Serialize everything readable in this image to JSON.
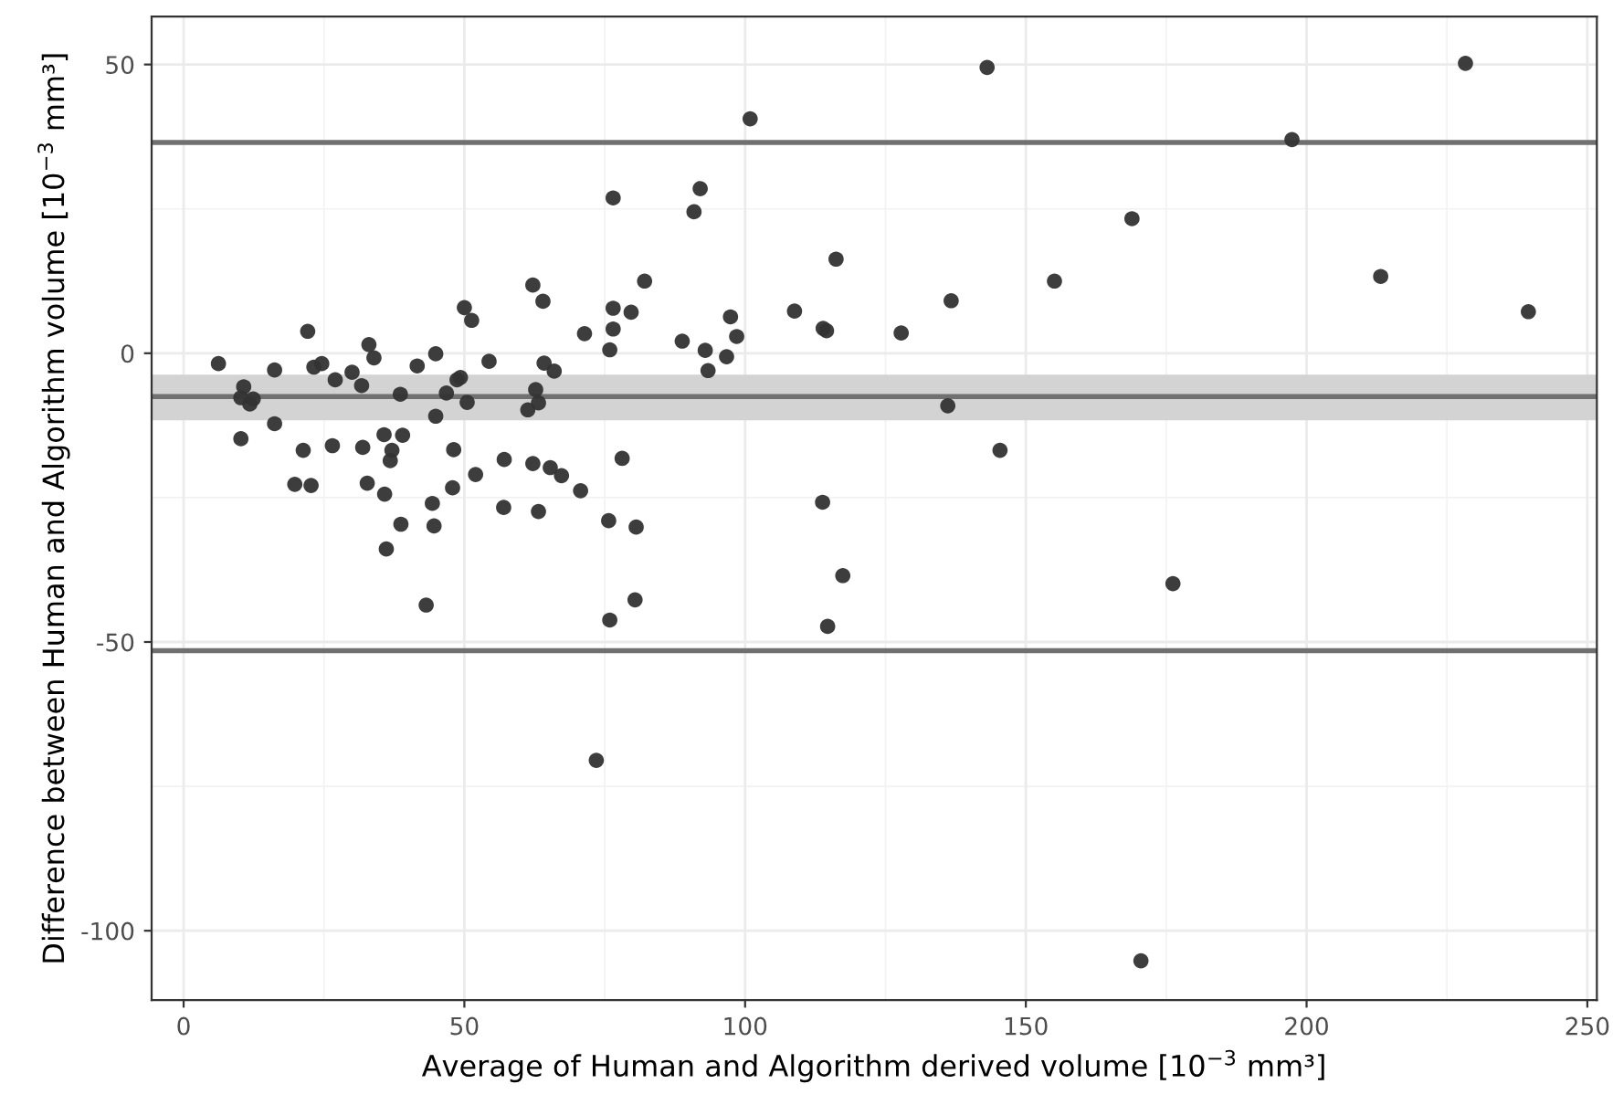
{
  "chart_data": {
    "type": "scatter",
    "xlabel": "Average of Human and Algorithm derived volume [10$^{−3}$ mm³]",
    "ylabel": "Difference between Human and Algorithm volume [10$^{−3}$ mm³]",
    "xlim": [
      -5.7,
      251.7
    ],
    "ylim": [
      -112,
      58.3
    ],
    "xticks": [
      0,
      50,
      100,
      150,
      200,
      250
    ],
    "yticks": [
      -100,
      -50,
      0,
      50
    ],
    "grid": true,
    "marker": "circle",
    "ref_lines": [
      {
        "axis": "y",
        "value": 36.5,
        "color": "#707070"
      },
      {
        "axis": "y",
        "value": -7.5,
        "color": "#707070"
      },
      {
        "axis": "y",
        "value": -51.5,
        "color": "#707070"
      }
    ],
    "bands": [
      {
        "axis": "y",
        "from": -11.6,
        "to": -3.7,
        "color": "#d3d3d3"
      }
    ],
    "series": [
      {
        "color": "#333333",
        "x": [
          6.2,
          10.7,
          10.2,
          11.8,
          12.4,
          10.2,
          16.2,
          16.2,
          22.1,
          23.2,
          24.6,
          21.3,
          19.8,
          22.7,
          27.0,
          26.5,
          30.0,
          31.7,
          33.0,
          33.9,
          31.9,
          32.7,
          35.7,
          39.0,
          37.1,
          36.8,
          35.8,
          38.7,
          36.1,
          38.6,
          41.6,
          44.9,
          44.9,
          43.2,
          44.3,
          44.6,
          48.1,
          47.9,
          46.8,
          48.7,
          49.3,
          50.0,
          51.3,
          50.5,
          54.4,
          52.0,
          57.1,
          57.0,
          62.2,
          64.0,
          64.2,
          66.0,
          62.7,
          63.2,
          61.3,
          62.2,
          65.3,
          67.3,
          70.7,
          63.2,
          71.4,
          76.5,
          76.5,
          76.5,
          75.9,
          79.7,
          82.1,
          78.1,
          75.7,
          80.6,
          80.4,
          75.9,
          92.0,
          90.9,
          88.8,
          92.9,
          93.4,
          96.7,
          97.4,
          98.5,
          108.8,
          113.9,
          114.5,
          116.2,
          113.8,
          117.4,
          114.7,
          100.9,
          73.5,
          143.1,
          228.3,
          197.4,
          168.9,
          155.1,
          213.2,
          136.7,
          239.5,
          127.8,
          136.1,
          145.4,
          176.2,
          170.5
        ],
        "values": [
          -1.8,
          -5.8,
          -7.7,
          -8.8,
          -7.9,
          -14.8,
          -2.9,
          -12.2,
          3.8,
          -2.4,
          -1.8,
          -16.8,
          -22.7,
          -22.9,
          -4.6,
          -16.0,
          -3.3,
          -5.6,
          1.5,
          -0.8,
          -16.3,
          -22.5,
          -14.1,
          -14.2,
          -16.8,
          -18.6,
          -24.4,
          -29.6,
          -33.9,
          -7.1,
          -2.2,
          -0.1,
          -10.9,
          -43.6,
          -26.0,
          -29.9,
          -16.7,
          -23.3,
          -6.9,
          -4.6,
          -4.2,
          7.9,
          5.7,
          -8.5,
          -1.4,
          -21.0,
          -18.4,
          -26.7,
          11.8,
          9.0,
          -1.7,
          -3.1,
          -6.3,
          -8.6,
          -9.8,
          -19.1,
          -19.8,
          -21.2,
          -23.8,
          -27.4,
          3.4,
          26.9,
          7.8,
          4.2,
          0.6,
          7.1,
          12.5,
          -18.2,
          -29.0,
          -30.1,
          -42.7,
          -46.2,
          28.5,
          24.5,
          2.1,
          0.5,
          -3.0,
          -0.6,
          6.3,
          2.9,
          7.3,
          4.3,
          3.9,
          16.3,
          -25.8,
          -38.5,
          -47.3,
          40.6,
          -70.5,
          49.5,
          50.2,
          37.0,
          23.3,
          12.5,
          13.3,
          9.1,
          7.2,
          3.5,
          -9.1,
          -16.8,
          -39.9,
          -105.2
        ]
      }
    ]
  }
}
